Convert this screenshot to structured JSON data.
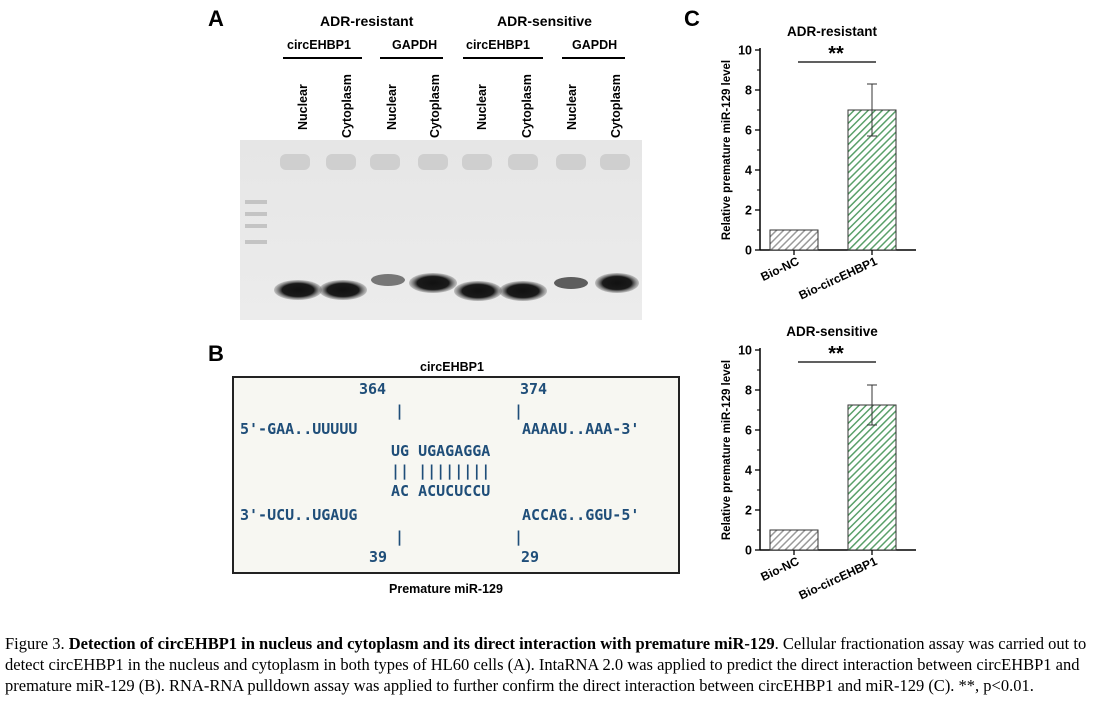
{
  "panel_a": {
    "letter": "A",
    "group_resistant": "ADR-resistant",
    "group_sensitive": "ADR-sensitive",
    "genes": [
      "circEHBP1",
      "GAPDH",
      "circEHBP1",
      "GAPDH"
    ],
    "lanes": [
      "Nuclear",
      "Cytoplasm",
      "Nuclear",
      "Cytoplasm",
      "Nuclear",
      "Cytoplasm",
      "Nuclear",
      "Cytoplasm"
    ]
  },
  "panel_b": {
    "letter": "B",
    "title": "circEHBP1",
    "pos_top_left": "364",
    "pos_top_right": "374",
    "tick": "|",
    "line_top_left": "5'-GAA..UUUUU",
    "line_top_right": "AAAAU..AAA-3'",
    "pair_top": "UG UGAGAGGA",
    "pair_bars": "|| ||||||||",
    "pair_bottom": "AC ACUCUCCU",
    "line_bottom_left": "3'-UCU..UGAUG",
    "line_bottom_right": "ACCAG..GGU-5'",
    "pos_bottom_left": "39",
    "pos_bottom_right": "29",
    "footer": "Premature miR-129"
  },
  "panel_c": {
    "letter": "C"
  },
  "chart_data": [
    {
      "type": "bar",
      "title": "ADR-resistant",
      "categories": [
        "Bio-NC",
        "Bio-circEHBP1"
      ],
      "values": [
        1.0,
        7.0
      ],
      "errors": [
        0.05,
        1.3
      ],
      "ylabel": "Relative premature miR-129 level",
      "xlabel": "",
      "ylim": [
        0,
        10
      ],
      "yticks": [
        "0",
        "2",
        "4",
        "6",
        "8",
        "10"
      ],
      "significance": "**",
      "colors": [
        "#9a9a9a",
        "#5aa06a"
      ]
    },
    {
      "type": "bar",
      "title": "ADR-sensitive",
      "categories": [
        "Bio-NC",
        "Bio-circEHBP1"
      ],
      "values": [
        1.0,
        7.25
      ],
      "errors": [
        0.05,
        1.0
      ],
      "ylabel": "Relative premature miR-129 level",
      "xlabel": "",
      "ylim": [
        0,
        10
      ],
      "yticks": [
        "0",
        "2",
        "4",
        "6",
        "8",
        "10"
      ],
      "significance": "**",
      "colors": [
        "#9a9a9a",
        "#5aa06a"
      ]
    }
  ],
  "caption": {
    "label": "Figure 3. ",
    "bold_title": "Detection of circEHBP1 in nucleus and cytoplasm and its direct interaction with premature miR-129",
    "body": ". Cellular fractionation assay was carried out to detect circEHBP1 in the nucleus and cytoplasm in both types of HL60 cells (A). IntaRNA 2.0 was applied to predict the direct interaction between circEHBP1 and premature miR-129 (B). RNA-RNA pulldown assay was applied to further confirm the direct interaction between circEHBP1 and miR-129 (C). **, p<0.01."
  }
}
